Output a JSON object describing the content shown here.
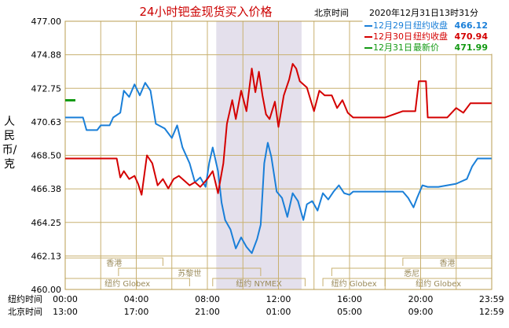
{
  "chart_data": {
    "type": "line",
    "title": "24小时钯金现货买入价格",
    "subtitle_location": "北京时间",
    "subtitle_datetime": "2020年12月31日13时31分",
    "ylabel": "人民币/克",
    "ylim": [
      460.0,
      477.0
    ],
    "yticks": [
      "477.00",
      "474.88",
      "472.75",
      "470.63",
      "468.50",
      "466.38",
      "464.25",
      "462.13",
      "460.00"
    ],
    "x_rows": [
      {
        "label": "纽约时间",
        "ticks": [
          "00:00",
          "04:00",
          "08:00",
          "12:00",
          "16:00",
          "20:00",
          "23:59"
        ]
      },
      {
        "label": "北京时间",
        "ticks": [
          "13:00",
          "17:00",
          "21:00",
          "01:00",
          "05:00",
          "09:00",
          "12:59"
        ]
      }
    ],
    "grid": true,
    "highlight_span_hours": [
      8.5,
      13.3
    ],
    "legend": {
      "placement": "top-right",
      "entries": [
        {
          "date": "12月29日",
          "desc": "纽约收盘",
          "value": "466.12",
          "color": "#1a7fd8"
        },
        {
          "date": "12月30日",
          "desc": "纽约收盘",
          "value": "470.94",
          "color": "#d40000"
        },
        {
          "date": "12月31日",
          "desc": "最新价",
          "value": "471.99",
          "color": "#149a14"
        }
      ]
    },
    "sessions": [
      {
        "name": "香港",
        "start": 0,
        "end": 5.5,
        "row": 0
      },
      {
        "name": "香港",
        "start": 19,
        "end": 24,
        "row": 0
      },
      {
        "name": "苏黎世",
        "start": 3,
        "end": 11,
        "row": 1
      },
      {
        "name": "悉尼",
        "start": 15,
        "end": 24,
        "row": 1
      },
      {
        "name": "纽约 Globex",
        "start": 0,
        "end": 7,
        "row": 2
      },
      {
        "name": "纽约 NYMEX",
        "start": 8.3,
        "end": 13.5,
        "row": 2
      },
      {
        "name": "纽约 Globex",
        "start": 14.5,
        "end": 18,
        "row": 2
      },
      {
        "name": "纽约 Globex",
        "start": 18,
        "end": 24,
        "row": 2
      }
    ],
    "series": [
      {
        "name": "12月29日",
        "color": "#1a7fd8",
        "points": [
          [
            0,
            470.9
          ],
          [
            1,
            470.9
          ],
          [
            1.2,
            470.1
          ],
          [
            1.8,
            470.1
          ],
          [
            2,
            470.4
          ],
          [
            2.5,
            470.4
          ],
          [
            2.7,
            470.9
          ],
          [
            3.1,
            471.2
          ],
          [
            3.3,
            472.6
          ],
          [
            3.6,
            472.2
          ],
          [
            3.9,
            473.0
          ],
          [
            4.2,
            472.3
          ],
          [
            4.5,
            473.1
          ],
          [
            4.8,
            472.6
          ],
          [
            5.1,
            470.5
          ],
          [
            5.6,
            470.2
          ],
          [
            6.0,
            469.6
          ],
          [
            6.3,
            470.4
          ],
          [
            6.6,
            469.0
          ],
          [
            7.0,
            468.0
          ],
          [
            7.3,
            466.8
          ],
          [
            7.6,
            467.1
          ],
          [
            7.9,
            466.5
          ],
          [
            8.1,
            468.0
          ],
          [
            8.3,
            469.0
          ],
          [
            8.6,
            467.5
          ],
          [
            8.8,
            465.5
          ],
          [
            9.0,
            464.4
          ],
          [
            9.3,
            463.8
          ],
          [
            9.6,
            462.6
          ],
          [
            9.9,
            463.3
          ],
          [
            10.2,
            462.7
          ],
          [
            10.5,
            462.3
          ],
          [
            10.8,
            463.2
          ],
          [
            11.0,
            464.1
          ],
          [
            11.2,
            468.0
          ],
          [
            11.4,
            469.3
          ],
          [
            11.6,
            468.4
          ],
          [
            11.9,
            466.2
          ],
          [
            12.2,
            465.8
          ],
          [
            12.5,
            464.6
          ],
          [
            12.8,
            466.1
          ],
          [
            13.1,
            465.6
          ],
          [
            13.4,
            464.4
          ],
          [
            13.6,
            465.4
          ],
          [
            13.9,
            465.6
          ],
          [
            14.2,
            465.0
          ],
          [
            14.5,
            466.1
          ],
          [
            14.8,
            465.7
          ],
          [
            15.1,
            466.2
          ],
          [
            15.4,
            466.6
          ],
          [
            15.7,
            466.1
          ],
          [
            16.0,
            466.0
          ],
          [
            16.2,
            466.2
          ],
          [
            17.0,
            466.2
          ],
          [
            18.0,
            466.2
          ],
          [
            19.0,
            466.2
          ],
          [
            19.3,
            465.8
          ],
          [
            19.6,
            465.2
          ],
          [
            19.8,
            465.8
          ],
          [
            20.1,
            466.6
          ],
          [
            20.4,
            466.5
          ],
          [
            21.0,
            466.5
          ],
          [
            22.0,
            466.7
          ],
          [
            22.6,
            467.0
          ],
          [
            22.9,
            467.8
          ],
          [
            23.2,
            468.3
          ],
          [
            23.99,
            468.3
          ]
        ]
      },
      {
        "name": "12月30日",
        "color": "#d40000",
        "points": [
          [
            0,
            468.3
          ],
          [
            1,
            468.3
          ],
          [
            2,
            468.3
          ],
          [
            2.9,
            468.3
          ],
          [
            3.1,
            467.1
          ],
          [
            3.3,
            467.5
          ],
          [
            3.6,
            467.0
          ],
          [
            3.9,
            467.2
          ],
          [
            4.1,
            466.7
          ],
          [
            4.3,
            466.0
          ],
          [
            4.6,
            468.5
          ],
          [
            4.9,
            468.0
          ],
          [
            5.2,
            466.6
          ],
          [
            5.5,
            467.0
          ],
          [
            5.8,
            466.4
          ],
          [
            6.1,
            467.0
          ],
          [
            6.4,
            467.2
          ],
          [
            6.7,
            466.9
          ],
          [
            7.0,
            466.6
          ],
          [
            7.3,
            466.8
          ],
          [
            7.6,
            466.5
          ],
          [
            8.0,
            467.0
          ],
          [
            8.3,
            467.5
          ],
          [
            8.6,
            466.1
          ],
          [
            8.9,
            468.0
          ],
          [
            9.1,
            470.5
          ],
          [
            9.4,
            472.0
          ],
          [
            9.6,
            470.8
          ],
          [
            9.9,
            472.6
          ],
          [
            10.2,
            471.3
          ],
          [
            10.5,
            474.0
          ],
          [
            10.7,
            472.5
          ],
          [
            10.9,
            473.8
          ],
          [
            11.1,
            472.3
          ],
          [
            11.3,
            471.1
          ],
          [
            11.5,
            470.8
          ],
          [
            11.8,
            471.9
          ],
          [
            12.0,
            470.3
          ],
          [
            12.3,
            472.3
          ],
          [
            12.6,
            473.3
          ],
          [
            12.8,
            474.3
          ],
          [
            13.0,
            474.0
          ],
          [
            13.2,
            473.2
          ],
          [
            13.6,
            472.8
          ],
          [
            14.0,
            471.3
          ],
          [
            14.3,
            472.6
          ],
          [
            14.6,
            472.3
          ],
          [
            15.0,
            472.3
          ],
          [
            15.3,
            471.5
          ],
          [
            15.6,
            472.0
          ],
          [
            15.9,
            471.2
          ],
          [
            16.2,
            470.9
          ],
          [
            17.0,
            470.9
          ],
          [
            18.0,
            470.9
          ],
          [
            19.0,
            471.3
          ],
          [
            19.7,
            471.3
          ],
          [
            19.9,
            473.2
          ],
          [
            20.3,
            473.2
          ],
          [
            20.4,
            470.9
          ],
          [
            21.5,
            470.9
          ],
          [
            22.0,
            471.5
          ],
          [
            22.4,
            471.2
          ],
          [
            22.8,
            471.8
          ],
          [
            23.99,
            471.8
          ]
        ]
      }
    ],
    "latest_marker": {
      "value": 471.99,
      "color": "#149a14"
    }
  }
}
